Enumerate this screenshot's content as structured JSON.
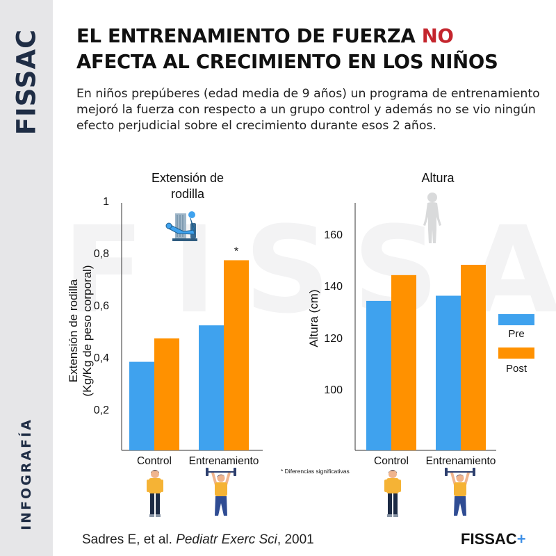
{
  "sidebar": {
    "brand": "FISSAC",
    "label": "INFOGRAFÍA"
  },
  "watermark": "FISSAC",
  "header": {
    "title_line1_pre": "EL ENTRENAMIENTO DE FUERZA ",
    "title_line1_accent": "NO",
    "title_line2": "AFECTA AL CRECIMIENTO EN LOS NIÑOS",
    "subtitle": "En niños prepúberes (edad media de 9 años) un programa de entrenamiento mejoró la fuerza con respecto a un grupo control y además no se vio ningún efecto perjudicial sobre el crecimiento durante esos 2 años."
  },
  "colors": {
    "pre": "#3fa2ee",
    "post": "#ff9100",
    "accent": "#c4252d",
    "brand_plus": "#3d8fe6",
    "sidebar_bg": "#e6e6e8",
    "sidebar_text": "#1f2d45"
  },
  "icons": {
    "knee_chart": "leg-extension-machine-icon",
    "height_chart": "child-silhouette-icon",
    "control": "standing-child-icon",
    "training": "child-lifting-barbell-icon"
  },
  "chart_data": [
    {
      "type": "bar",
      "title_line1": "Extensión de",
      "title_line2": "rodilla",
      "ylabel_line1": "Extensión de rodilla",
      "ylabel_line2": "(Kg/Kg de peso corporal)",
      "categories": [
        "Control",
        "Entrenamiento"
      ],
      "series": [
        {
          "name": "Pre",
          "values": [
            0.39,
            0.53
          ]
        },
        {
          "name": "Post",
          "values": [
            0.48,
            0.78
          ]
        }
      ],
      "yticks": [
        0.2,
        0.4,
        0.6,
        0.8,
        1
      ],
      "ytick_labels": [
        "0,2",
        "0,4",
        "0,6",
        "0,8",
        "1"
      ],
      "ylim": [
        0.05,
        1.0
      ],
      "annotations": [
        {
          "category": "Entrenamiento",
          "series": "Post",
          "text": "*"
        }
      ],
      "grid": false
    },
    {
      "type": "bar",
      "title_line1": "Altura",
      "ylabel_line1": "Altura (cm)",
      "categories": [
        "Control",
        "Entrenamiento"
      ],
      "series": [
        {
          "name": "Pre",
          "values": [
            135,
            137
          ]
        },
        {
          "name": "Post",
          "values": [
            145,
            149
          ]
        }
      ],
      "yticks": [
        100,
        120,
        140,
        160
      ],
      "ytick_labels": [
        "100",
        "120",
        "140",
        "160"
      ],
      "ylim": [
        77,
        173
      ],
      "legend": {
        "entries": [
          "Pre",
          "Post"
        ],
        "position": "right"
      },
      "grid": false
    }
  ],
  "footnote": "* Diferencias significativas",
  "citation": {
    "authors": "Sadres E, et al. ",
    "journal": "Pediatr Exerc Sci",
    "year": ", 2001"
  },
  "footer_brand": {
    "name": "FISSAC",
    "plus": "+"
  }
}
